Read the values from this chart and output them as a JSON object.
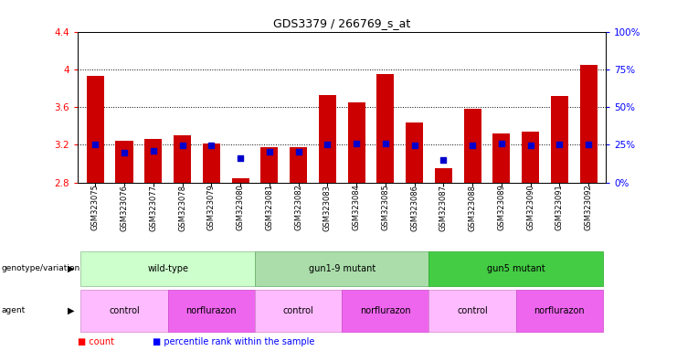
{
  "title": "GDS3379 / 266769_s_at",
  "samples": [
    "GSM323075",
    "GSM323076",
    "GSM323077",
    "GSM323078",
    "GSM323079",
    "GSM323080",
    "GSM323081",
    "GSM323082",
    "GSM323083",
    "GSM323084",
    "GSM323085",
    "GSM323086",
    "GSM323087",
    "GSM323088",
    "GSM323089",
    "GSM323090",
    "GSM323091",
    "GSM323092"
  ],
  "red_values": [
    3.93,
    3.24,
    3.26,
    3.3,
    3.21,
    2.85,
    3.17,
    3.17,
    3.73,
    3.65,
    3.95,
    3.44,
    2.95,
    3.58,
    3.32,
    3.34,
    3.72,
    4.05
  ],
  "blue_values": [
    3.2,
    3.12,
    3.14,
    3.19,
    3.19,
    3.06,
    3.13,
    3.13,
    3.2,
    3.21,
    3.21,
    3.19,
    3.04,
    3.19,
    3.21,
    3.19,
    3.2,
    3.2
  ],
  "ymin": 2.8,
  "ymax": 4.4,
  "yticks": [
    2.8,
    3.2,
    3.6,
    4.0,
    4.4
  ],
  "right_yticks": [
    0,
    25,
    50,
    75,
    100
  ],
  "dotted_lines": [
    3.2,
    3.6,
    4.0
  ],
  "genotype_groups": [
    {
      "label": "wild-type",
      "start": 0,
      "end": 5,
      "color": "#ccffcc",
      "edge": "#88bb88"
    },
    {
      "label": "gun1-9 mutant",
      "start": 6,
      "end": 11,
      "color": "#aaddaa",
      "edge": "#66aa66"
    },
    {
      "label": "gun5 mutant",
      "start": 12,
      "end": 17,
      "color": "#44cc44",
      "edge": "#22aa22"
    }
  ],
  "agent_groups": [
    {
      "label": "control",
      "start": 0,
      "end": 2,
      "color": "#ffbbff",
      "edge": "#cc88cc"
    },
    {
      "label": "norflurazon",
      "start": 3,
      "end": 5,
      "color": "#ee66ee",
      "edge": "#cc44cc"
    },
    {
      "label": "control",
      "start": 6,
      "end": 8,
      "color": "#ffbbff",
      "edge": "#cc88cc"
    },
    {
      "label": "norflurazon",
      "start": 9,
      "end": 11,
      "color": "#ee66ee",
      "edge": "#cc44cc"
    },
    {
      "label": "control",
      "start": 12,
      "end": 14,
      "color": "#ffbbff",
      "edge": "#cc88cc"
    },
    {
      "label": "norflurazon",
      "start": 15,
      "end": 17,
      "color": "#ee66ee",
      "edge": "#cc44cc"
    }
  ],
  "bar_color": "#cc0000",
  "blue_color": "#0000cc",
  "bar_width": 0.6,
  "blue_square_size": 18,
  "legend_red": "count",
  "legend_blue": "percentile rank within the sample"
}
